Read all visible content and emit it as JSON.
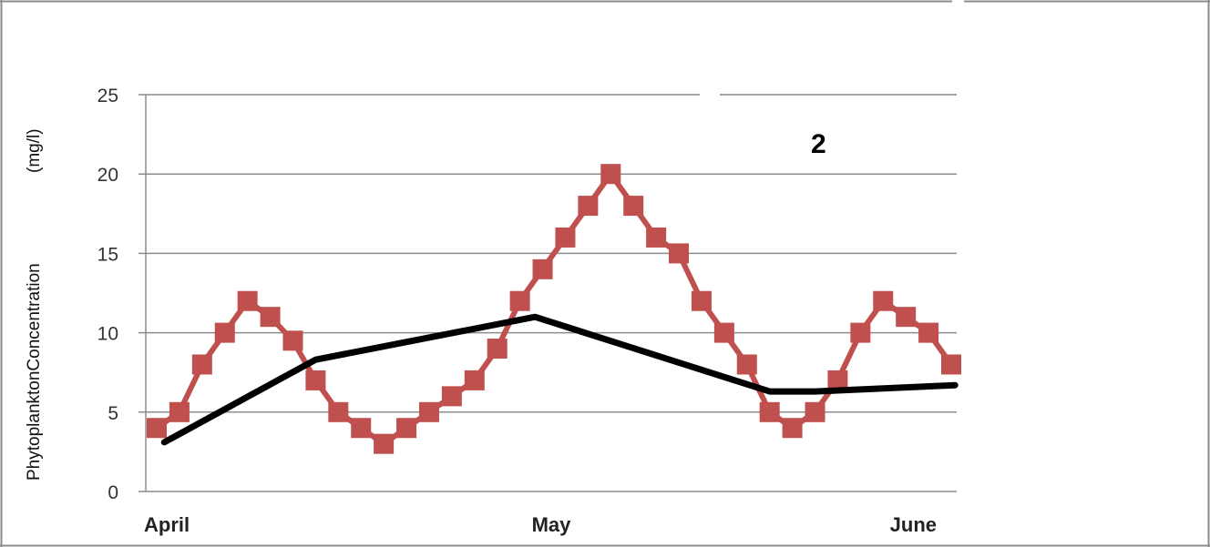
{
  "chart_data": {
    "type": "line",
    "title": "",
    "xlabel": "",
    "ylabel": "Phytoplankton Concentration (mg/l)",
    "ylabel_parts": [
      "PhytoplanktonConcentration",
      "(mg/l)"
    ],
    "ylim": [
      0,
      25
    ],
    "yticks": [
      0,
      5,
      10,
      15,
      20,
      25
    ],
    "grid": true,
    "legend": "none",
    "annotation": "2",
    "x_categories": [
      "April",
      "May",
      "June"
    ],
    "series": [
      {
        "color": "#c0504d",
        "marker": "square",
        "x": [
          0,
          0.06,
          0.12,
          0.18,
          0.24,
          0.3,
          0.36,
          0.42,
          0.48,
          0.54,
          0.6,
          0.66,
          0.72,
          0.78,
          0.84,
          0.9,
          0.96,
          1.02,
          1.08,
          1.14,
          1.2,
          1.26,
          1.32,
          1.38,
          1.44,
          1.5,
          1.56,
          1.62,
          1.68,
          1.74,
          1.8,
          1.86,
          1.92,
          1.98,
          2.04,
          2.1
        ],
        "values": [
          4,
          5,
          8,
          10,
          12,
          11,
          9.5,
          7,
          5,
          4,
          3,
          4,
          5,
          6,
          7,
          9,
          12,
          14,
          16,
          18,
          20,
          18,
          16,
          15,
          12,
          10,
          8,
          5,
          4,
          5,
          7,
          10,
          12,
          11,
          10,
          8
        ]
      },
      {
        "color": "#000000",
        "marker": "none",
        "x": [
          0.02,
          0.42,
          1.0,
          1.62,
          1.74,
          2.11
        ],
        "values": [
          3.1,
          8.3,
          11.0,
          6.3,
          6.3,
          6.7
        ]
      }
    ]
  }
}
